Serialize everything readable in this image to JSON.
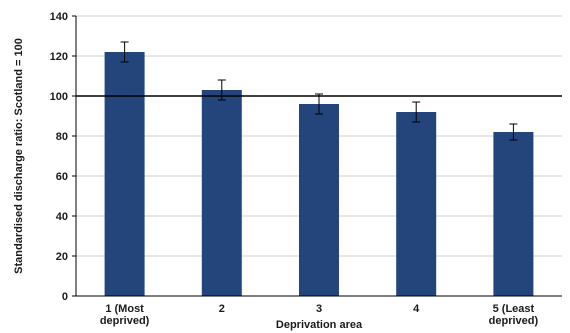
{
  "chart_data": {
    "type": "bar",
    "title": "",
    "xlabel": "Deprivation area",
    "ylabel": "Standardised discharge ratio: Scotland = 100",
    "categories": [
      [
        "1 (Most",
        "deprived)"
      ],
      [
        "2"
      ],
      [
        "3"
      ],
      [
        "4"
      ],
      [
        "5 (Least",
        "deprived)"
      ]
    ],
    "values": [
      122,
      103,
      96,
      92,
      82
    ],
    "error_bars": [
      [
        117,
        127
      ],
      [
        98,
        108
      ],
      [
        91,
        101
      ],
      [
        87,
        97
      ],
      [
        78,
        86
      ]
    ],
    "reference_line": 100,
    "ylim": [
      0,
      140
    ],
    "yticks": [
      0,
      20,
      40,
      60,
      80,
      100,
      120,
      140
    ],
    "colors": {
      "bar": "#24457c",
      "grid": "#d0d0d0",
      "axis": "#000000"
    },
    "grid": true,
    "legend": "none"
  }
}
